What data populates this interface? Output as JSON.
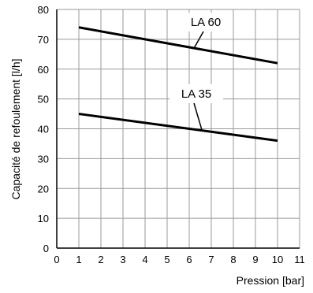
{
  "chart_data": {
    "type": "line",
    "title": "",
    "xlabel": "Pression [bar]",
    "ylabel": "Capacité de refoulement [l/h]",
    "xlim": [
      0,
      11
    ],
    "ylim": [
      0,
      80
    ],
    "x_ticks": [
      0,
      1,
      2,
      3,
      4,
      5,
      6,
      7,
      8,
      9,
      10,
      11
    ],
    "y_ticks": [
      0,
      10,
      20,
      30,
      40,
      50,
      60,
      70,
      80
    ],
    "grid": true,
    "legend": "inline-labels",
    "line_color": "#000000",
    "series": [
      {
        "name": "LA 60",
        "x": [
          1,
          10
        ],
        "y": [
          74,
          62
        ]
      },
      {
        "name": "LA 35",
        "x": [
          1,
          10
        ],
        "y": [
          45,
          36
        ]
      }
    ]
  }
}
